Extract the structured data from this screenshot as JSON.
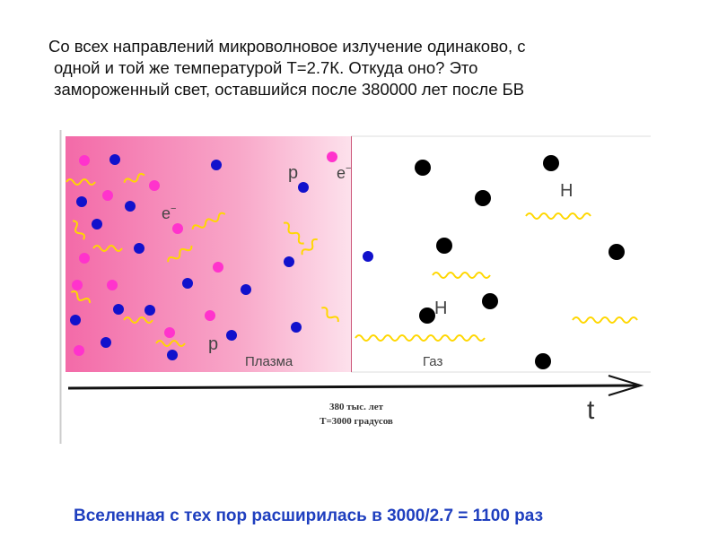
{
  "heading": {
    "line1": "Со всех направлений микроволновое излучение одинаково, с",
    "line2": "одной и той же температурой Т=2.7К. Откуда оно? Это",
    "line3": "замороженный свет, оставшийся после 380000 лет после БВ"
  },
  "diagram": {
    "plasma_label": "Плазма",
    "gas_label": "Газ",
    "proton_label": "p",
    "electron_label": "e",
    "electron_superscript": "−",
    "hydrogen_label": "H",
    "time_label": "t",
    "epoch_line1": "380 тыс. лет",
    "epoch_line2": "Т=3000 градусов",
    "colors": {
      "proton": "#ff33cc",
      "electron": "#1111cc",
      "hydrogen": "#000000",
      "photon": "#ffd700",
      "plasma_left": "#f36aa8",
      "plasma_right": "#fde1ec"
    }
  },
  "footer": {
    "text": "Вселенная с тех пор расширилась в 3000/2.7 = 1100 раз"
  }
}
